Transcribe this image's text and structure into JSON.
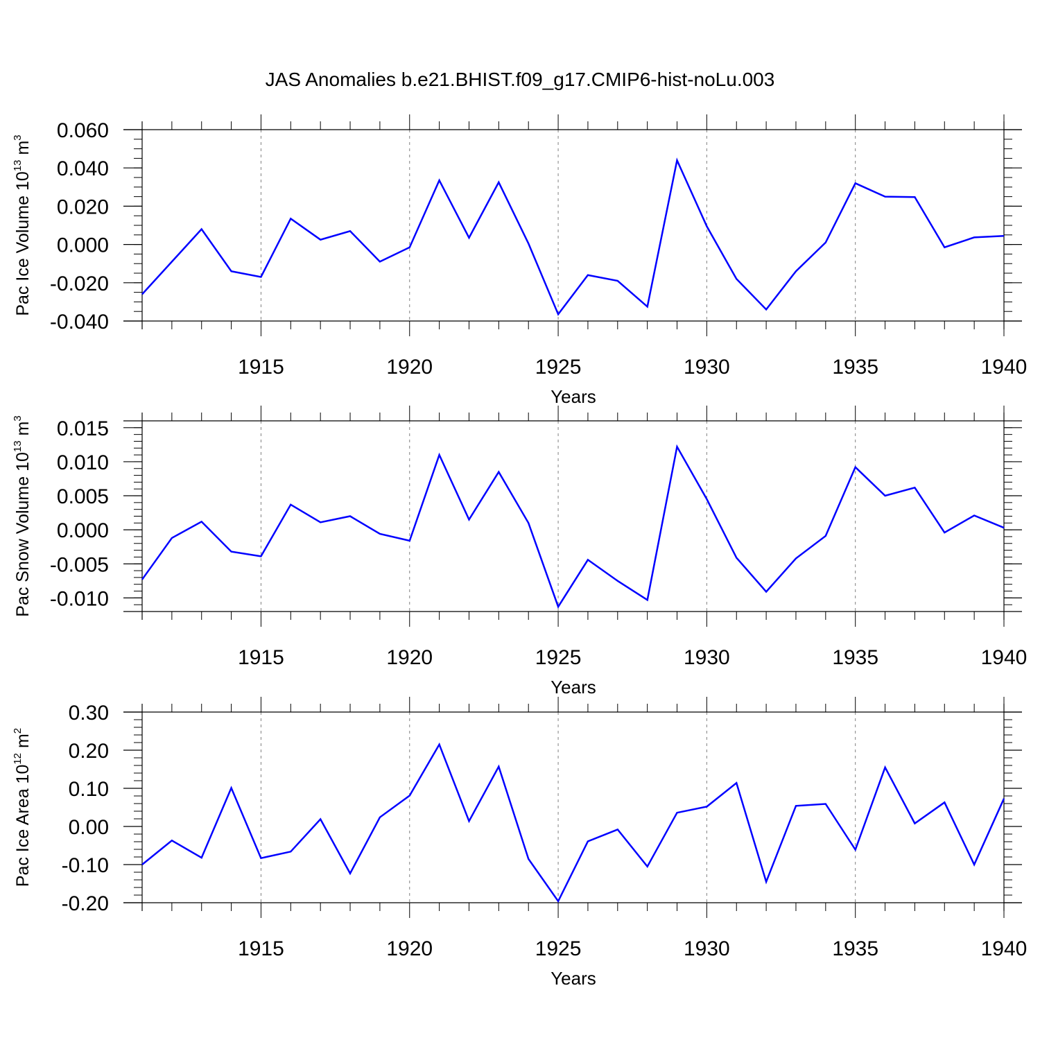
{
  "title": "JAS Anomalies b.e21.BHIST.f09_g17.CMIP6-hist-noLu.003",
  "colors": {
    "series": "#0000ff",
    "axes": "#000000",
    "grid": "#808080"
  },
  "chart_data": [
    {
      "type": "line",
      "ylabel_prefix": "Pac Ice Volume 10",
      "ylabel_exponent": "13",
      "ylabel_unit": "m",
      "ylabel_unit_exponent": "3",
      "xlabel": "Years",
      "xlim": [
        1911,
        1940
      ],
      "ylim": [
        -0.04,
        0.06
      ],
      "xticks": [
        1915,
        1920,
        1925,
        1930,
        1935,
        1940
      ],
      "xtick_labels": [
        "1915",
        "1920",
        "1925",
        "1930",
        "1935",
        "1940"
      ],
      "yticks": [
        -0.04,
        -0.02,
        0.0,
        0.02,
        0.04,
        0.06
      ],
      "ytick_labels": [
        "-0.040",
        "-0.020",
        "0.000",
        "0.020",
        "0.040",
        "0.060"
      ],
      "ytick_minor_step": 0.005,
      "vertical_grid": [
        1915,
        1920,
        1925,
        1930,
        1935
      ],
      "x": [
        1911,
        1912,
        1913,
        1914,
        1915,
        1916,
        1917,
        1918,
        1919,
        1920,
        1921,
        1922,
        1923,
        1924,
        1925,
        1926,
        1927,
        1928,
        1929,
        1930,
        1931,
        1932,
        1933,
        1934,
        1935,
        1936,
        1937,
        1938,
        1939,
        1940
      ],
      "values": [
        -0.026,
        -0.009,
        0.008,
        -0.014,
        -0.017,
        0.0135,
        0.0025,
        0.007,
        -0.009,
        -0.0015,
        0.0335,
        0.0035,
        0.0325,
        0.0005,
        -0.0365,
        -0.016,
        -0.019,
        -0.0325,
        0.044,
        0.0095,
        -0.018,
        -0.034,
        -0.014,
        0.001,
        0.032,
        0.025,
        0.0248,
        -0.0015,
        0.0037,
        0.0045
      ]
    },
    {
      "type": "line",
      "ylabel_prefix": "Pac Snow Volume 10",
      "ylabel_exponent": "13",
      "ylabel_unit": "m",
      "ylabel_unit_exponent": "3",
      "xlabel": "Years",
      "xlim": [
        1911,
        1940
      ],
      "ylim": [
        -0.012,
        0.016
      ],
      "xticks": [
        1915,
        1920,
        1925,
        1930,
        1935,
        1940
      ],
      "xtick_labels": [
        "1915",
        "1920",
        "1925",
        "1930",
        "1935",
        "1940"
      ],
      "yticks": [
        -0.01,
        -0.005,
        0.0,
        0.005,
        0.01,
        0.015
      ],
      "ytick_labels": [
        "-0.010",
        "-0.005",
        "0.000",
        "0.005",
        "0.010",
        "0.015"
      ],
      "ytick_minor_step": 0.001,
      "vertical_grid": [
        1915,
        1920,
        1925,
        1930,
        1935
      ],
      "x": [
        1911,
        1912,
        1913,
        1914,
        1915,
        1916,
        1917,
        1918,
        1919,
        1920,
        1921,
        1922,
        1923,
        1924,
        1925,
        1926,
        1927,
        1928,
        1929,
        1930,
        1931,
        1932,
        1933,
        1934,
        1935,
        1936,
        1937,
        1938,
        1939,
        1940
      ],
      "values": [
        -0.0073,
        -0.0012,
        0.0012,
        -0.0032,
        -0.0039,
        0.0037,
        0.0011,
        0.002,
        -0.0006,
        -0.0016,
        0.011,
        0.0015,
        0.0085,
        0.001,
        -0.0113,
        -0.0044,
        -0.0075,
        -0.0103,
        0.0122,
        0.0045,
        -0.0041,
        -0.0091,
        -0.0042,
        -0.0009,
        0.0092,
        0.005,
        0.0062,
        -0.0004,
        0.0021,
        0.0003
      ]
    },
    {
      "type": "line",
      "ylabel_prefix": "Pac Ice Area 10",
      "ylabel_exponent": "12",
      "ylabel_unit": "m",
      "ylabel_unit_exponent": "2",
      "xlabel": "Years",
      "xlim": [
        1911,
        1940
      ],
      "ylim": [
        -0.2,
        0.3
      ],
      "xticks": [
        1915,
        1920,
        1925,
        1930,
        1935,
        1940
      ],
      "xtick_labels": [
        "1915",
        "1920",
        "1925",
        "1930",
        "1935",
        "1940"
      ],
      "yticks": [
        -0.2,
        -0.1,
        0.0,
        0.1,
        0.2,
        0.3
      ],
      "ytick_labels": [
        "-0.20",
        "-0.10",
        "0.00",
        "0.10",
        "0.20",
        "0.30"
      ],
      "ytick_minor_step": 0.02,
      "vertical_grid": [
        1915,
        1920,
        1925,
        1930,
        1935
      ],
      "x": [
        1911,
        1912,
        1913,
        1914,
        1915,
        1916,
        1917,
        1918,
        1919,
        1920,
        1921,
        1922,
        1923,
        1924,
        1925,
        1926,
        1927,
        1928,
        1929,
        1930,
        1931,
        1932,
        1933,
        1934,
        1935,
        1936,
        1937,
        1938,
        1939,
        1940
      ],
      "values": [
        -0.1,
        -0.037,
        -0.082,
        0.101,
        -0.083,
        -0.066,
        0.019,
        -0.123,
        0.024,
        0.081,
        0.215,
        0.014,
        0.157,
        -0.085,
        -0.196,
        -0.039,
        -0.008,
        -0.105,
        0.036,
        0.052,
        0.114,
        -0.145,
        0.054,
        0.059,
        -0.061,
        0.155,
        0.008,
        0.063,
        -0.1,
        0.073
      ]
    }
  ]
}
